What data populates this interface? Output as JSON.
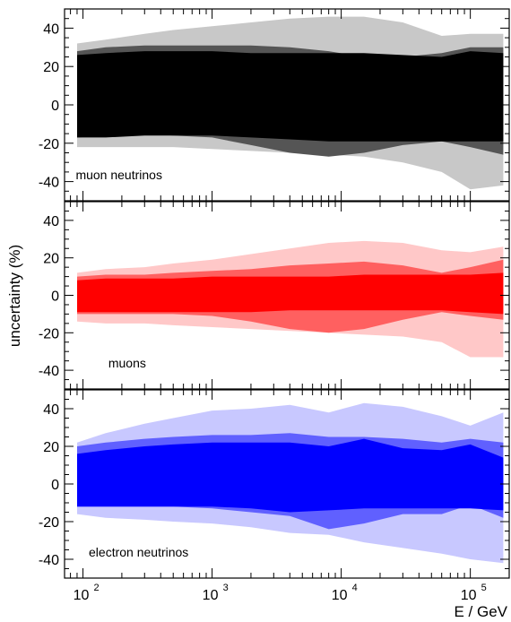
{
  "chart_data": {
    "type": "area",
    "xlabel": "E / GeV",
    "ylabel": "uncertainty (%)",
    "xscale": "log",
    "xlim": [
      72,
      200000
    ],
    "ylim": [
      -50,
      50
    ],
    "y_ticks": [
      -40,
      -20,
      0,
      20,
      40
    ],
    "x_major_ticks": [
      {
        "value": 100,
        "base": "10",
        "exp": "2"
      },
      {
        "value": 1000,
        "base": "10",
        "exp": "3"
      },
      {
        "value": 10000,
        "base": "10",
        "exp": "4"
      },
      {
        "value": 100000,
        "base": "10",
        "exp": "5"
      }
    ],
    "x": [
      90,
      150,
      300,
      500,
      1000,
      2000,
      4000,
      8000,
      15000,
      30000,
      60000,
      100000,
      180000
    ],
    "panels": [
      {
        "label": "muon neutrinos",
        "colors": {
          "outer": "#c8c8c8",
          "middle": "#555555",
          "inner": "#000000"
        },
        "outer_upper": [
          32,
          34,
          37,
          39,
          41,
          43,
          45,
          46,
          46,
          43,
          36,
          37,
          37
        ],
        "middle_upper": [
          28,
          30,
          31,
          31,
          31,
          31,
          30,
          28,
          25,
          25,
          27,
          30,
          30
        ],
        "inner_upper": [
          26,
          27,
          28,
          28,
          28,
          27,
          27,
          27,
          27,
          26,
          25,
          28,
          27
        ],
        "inner_lower": [
          -17,
          -17,
          -16,
          -16,
          -16,
          -17,
          -18,
          -19,
          -19,
          -19,
          -19,
          -19,
          -19
        ],
        "middle_lower": [
          -17,
          -16,
          -15,
          -16,
          -17,
          -21,
          -25,
          -27,
          -25,
          -21,
          -19,
          -22,
          -26
        ],
        "outer_lower": [
          -22,
          -22,
          -22,
          -22,
          -23,
          -24,
          -25,
          -26,
          -27,
          -30,
          -35,
          -44,
          -42
        ]
      },
      {
        "label": "muons",
        "colors": {
          "outer": "#ffc8c8",
          "middle": "#ff6060",
          "inner": "#ff0000"
        },
        "outer_upper": [
          12,
          14,
          15,
          17,
          19,
          22,
          25,
          28,
          29,
          28,
          24,
          23,
          26
        ],
        "middle_upper": [
          10,
          11,
          11,
          12,
          13,
          14,
          16,
          17,
          18,
          16,
          12,
          15,
          19
        ],
        "inner_upper": [
          8,
          9,
          9,
          9,
          10,
          10,
          10,
          10,
          11,
          11,
          11,
          11,
          12
        ],
        "inner_lower": [
          -9,
          -9,
          -9,
          -9,
          -9,
          -9,
          -8,
          -8,
          -8,
          -8,
          -8,
          -9,
          -10
        ],
        "middle_lower": [
          -10,
          -10,
          -10,
          -10,
          -11,
          -14,
          -18,
          -20,
          -18,
          -13,
          -9,
          -11,
          -13
        ],
        "outer_lower": [
          -14,
          -15,
          -15,
          -16,
          -17,
          -18,
          -19,
          -20,
          -21,
          -22,
          -25,
          -33,
          -33
        ]
      },
      {
        "label": "electron neutrinos",
        "colors": {
          "outer": "#c8c8ff",
          "middle": "#6060ff",
          "inner": "#0000ff"
        },
        "outer_upper": [
          22,
          27,
          32,
          35,
          39,
          40,
          42,
          38,
          43,
          41,
          36,
          31,
          38
        ],
        "middle_upper": [
          20,
          22,
          24,
          25,
          26,
          26,
          27,
          25,
          25,
          24,
          22,
          24,
          22
        ],
        "inner_upper": [
          16,
          18,
          20,
          21,
          22,
          22,
          22,
          20,
          24,
          19,
          18,
          21,
          14
        ],
        "inner_lower": [
          -12,
          -12,
          -12,
          -12,
          -12,
          -13,
          -15,
          -14,
          -13,
          -13,
          -13,
          -13,
          -14
        ],
        "middle_lower": [
          -12,
          -12,
          -12,
          -12,
          -13,
          -15,
          -17,
          -24,
          -21,
          -16,
          -16,
          -11,
          -18
        ],
        "outer_lower": [
          -16,
          -18,
          -19,
          -20,
          -21,
          -23,
          -26,
          -27,
          -31,
          -34,
          -37,
          -40,
          -42
        ]
      }
    ]
  }
}
